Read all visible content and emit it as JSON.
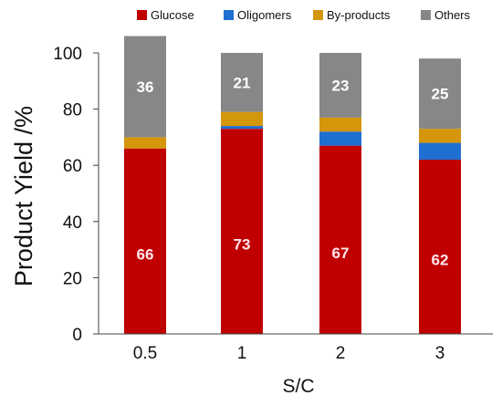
{
  "chart_data": {
    "type": "bar",
    "stacked": true,
    "categories": [
      "0.5",
      "1",
      "2",
      "3"
    ],
    "series": [
      {
        "name": "Glucose",
        "color": "#c00000",
        "values": [
          66,
          73,
          67,
          62
        ],
        "labels": [
          "66",
          "73",
          "67",
          "62"
        ]
      },
      {
        "name": "Oligomers",
        "color": "#1f6fd1",
        "values": [
          0,
          1,
          5,
          6
        ]
      },
      {
        "name": "By-products",
        "color": "#d4960b",
        "values": [
          4,
          5,
          5,
          5
        ]
      },
      {
        "name": "Others",
        "color": "#878787",
        "values": [
          36,
          21,
          23,
          25
        ],
        "labels": [
          "36",
          "21",
          "23",
          "25"
        ]
      }
    ],
    "xlabel": "S/C",
    "ylabel": "Product Yield /%",
    "ylim": [
      0,
      100
    ],
    "yticks": [
      0,
      20,
      40,
      60,
      80,
      100
    ],
    "grid": false,
    "legend_position": "top"
  }
}
